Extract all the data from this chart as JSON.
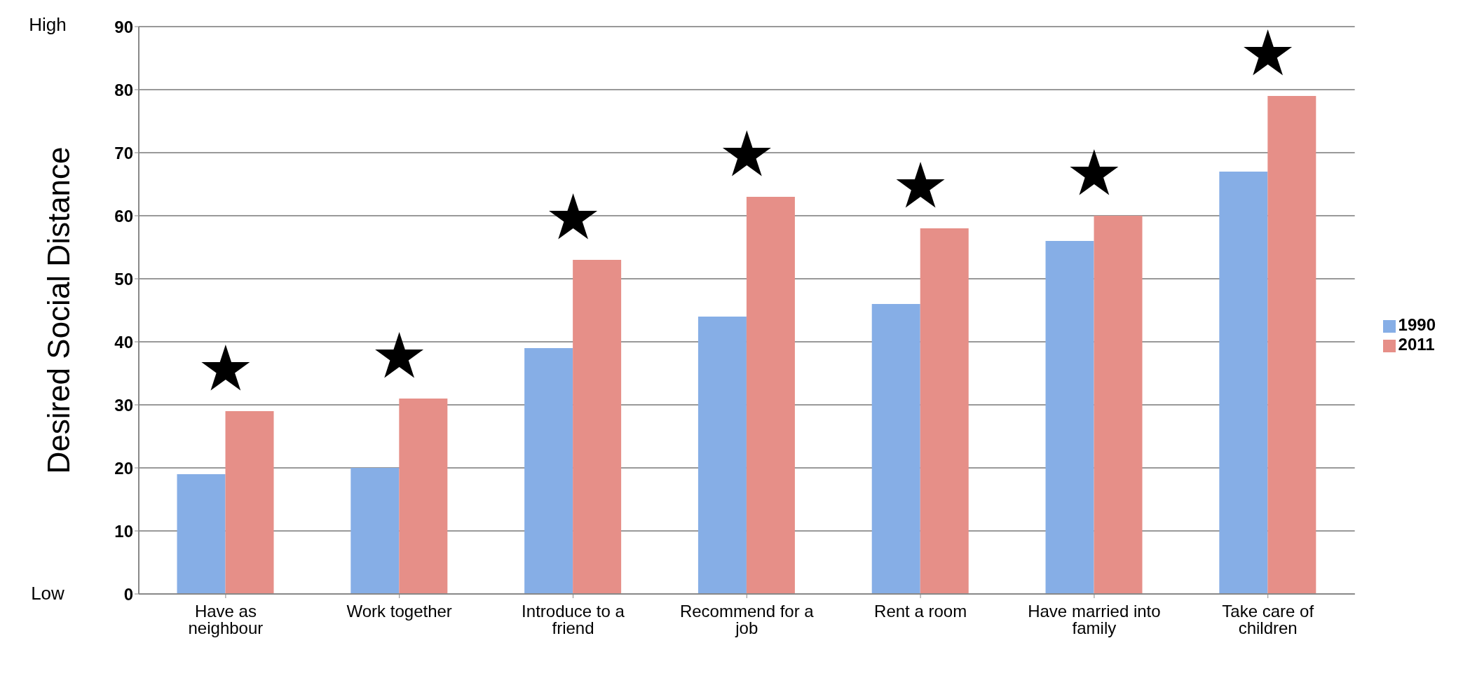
{
  "chart_data": {
    "type": "bar",
    "ylabel": "Desired Social Distance",
    "categories": [
      "Have as neighbour",
      "Work together",
      "Introduce to a friend",
      "Recommend for a job",
      "Rent a room",
      "Have married into family",
      "Take care of children"
    ],
    "series": [
      {
        "name": "1990",
        "color": "#86aee6",
        "values": [
          19,
          20,
          39,
          44,
          46,
          56,
          67
        ]
      },
      {
        "name": "2011",
        "color": "#e68f88",
        "values": [
          29,
          31,
          53,
          63,
          58,
          60,
          79
        ]
      }
    ],
    "ylim": [
      0,
      90
    ],
    "yticks": [
      0,
      10,
      20,
      30,
      40,
      50,
      60,
      70,
      80,
      90
    ],
    "grid": "y",
    "legend": "right",
    "annotations": [
      "High",
      "Low",
      "★",
      "★",
      "★",
      "★",
      "★",
      "★",
      "★"
    ]
  }
}
